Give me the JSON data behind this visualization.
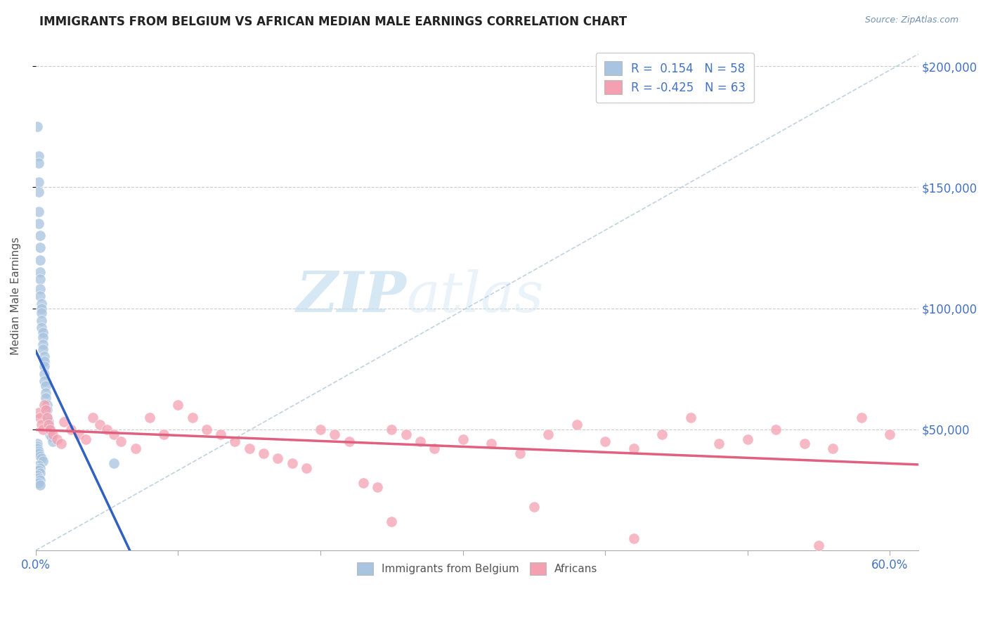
{
  "title": "IMMIGRANTS FROM BELGIUM VS AFRICAN MEDIAN MALE EARNINGS CORRELATION CHART",
  "source": "Source: ZipAtlas.com",
  "ylabel": "Median Male Earnings",
  "R_belgium": 0.154,
  "N_belgium": 58,
  "R_african": -0.425,
  "N_african": 63,
  "xlim": [
    0.0,
    0.62
  ],
  "ylim": [
    0,
    210000
  ],
  "yticks": [
    50000,
    100000,
    150000,
    200000
  ],
  "xtick_positions": [
    0.0,
    0.1,
    0.2,
    0.3,
    0.4,
    0.5,
    0.6
  ],
  "color_belgium": "#a8c4e0",
  "color_african": "#f4a0b0",
  "trendline_belgium": "#3060c0",
  "trendline_african": "#e06080",
  "legend_text_color": "#4472C4",
  "background_color": "#ffffff",
  "grid_color": "#cccccc",
  "watermark_zip": "ZIP",
  "watermark_atlas": "atlas",
  "belgium_x": [
    0.001,
    0.002,
    0.002,
    0.002,
    0.002,
    0.002,
    0.002,
    0.003,
    0.003,
    0.003,
    0.003,
    0.003,
    0.003,
    0.003,
    0.004,
    0.004,
    0.004,
    0.004,
    0.004,
    0.005,
    0.005,
    0.005,
    0.005,
    0.006,
    0.006,
    0.006,
    0.006,
    0.006,
    0.007,
    0.007,
    0.007,
    0.008,
    0.008,
    0.008,
    0.009,
    0.009,
    0.01,
    0.01,
    0.011,
    0.012,
    0.001,
    0.001,
    0.001,
    0.002,
    0.002,
    0.003,
    0.004,
    0.005,
    0.055,
    0.002,
    0.003,
    0.002,
    0.003,
    0.001,
    0.002,
    0.003,
    0.002,
    0.003
  ],
  "belgium_y": [
    175000,
    163000,
    160000,
    152000,
    148000,
    140000,
    135000,
    130000,
    125000,
    120000,
    115000,
    112000,
    108000,
    105000,
    102000,
    100000,
    98000,
    95000,
    92000,
    90000,
    88000,
    85000,
    83000,
    80000,
    78000,
    76000,
    73000,
    70000,
    68000,
    65000,
    63000,
    60000,
    58000,
    55000,
    53000,
    51000,
    50000,
    48000,
    47000,
    45000,
    44000,
    43000,
    42000,
    41000,
    40000,
    39000,
    38000,
    37000,
    36000,
    35000,
    34000,
    33000,
    32000,
    31000,
    30000,
    29000,
    28000,
    27000
  ],
  "african_x": [
    0.002,
    0.003,
    0.004,
    0.005,
    0.006,
    0.007,
    0.008,
    0.009,
    0.01,
    0.012,
    0.015,
    0.018,
    0.02,
    0.025,
    0.03,
    0.035,
    0.04,
    0.045,
    0.05,
    0.055,
    0.06,
    0.07,
    0.08,
    0.09,
    0.1,
    0.11,
    0.12,
    0.13,
    0.14,
    0.15,
    0.16,
    0.17,
    0.18,
    0.19,
    0.2,
    0.21,
    0.22,
    0.23,
    0.24,
    0.25,
    0.26,
    0.27,
    0.28,
    0.3,
    0.32,
    0.34,
    0.36,
    0.38,
    0.4,
    0.42,
    0.44,
    0.46,
    0.48,
    0.5,
    0.52,
    0.54,
    0.56,
    0.58,
    0.6,
    0.35,
    0.25,
    0.42,
    0.55
  ],
  "african_y": [
    57000,
    55000,
    52000,
    50000,
    60000,
    58000,
    55000,
    52000,
    50000,
    48000,
    46000,
    44000,
    53000,
    50000,
    48000,
    46000,
    55000,
    52000,
    50000,
    48000,
    45000,
    42000,
    55000,
    48000,
    60000,
    55000,
    50000,
    48000,
    45000,
    42000,
    40000,
    38000,
    36000,
    34000,
    50000,
    48000,
    45000,
    28000,
    26000,
    50000,
    48000,
    45000,
    42000,
    46000,
    44000,
    40000,
    48000,
    52000,
    45000,
    42000,
    48000,
    55000,
    44000,
    46000,
    50000,
    44000,
    42000,
    55000,
    48000,
    18000,
    12000,
    5000,
    2000
  ]
}
